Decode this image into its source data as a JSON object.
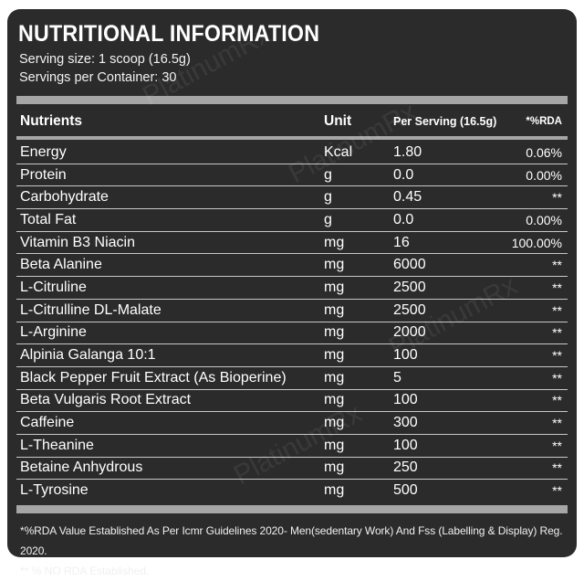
{
  "title": "NUTRITIONAL INFORMATION",
  "serving_size": "Serving size: 1 scoop (16.5g)",
  "servings_per_container": "Servings per Container: 30",
  "headers": {
    "nutrients": "Nutrients",
    "unit": "Unit",
    "per_serving": "Per Serving (16.5g)",
    "rda": "*%RDA"
  },
  "rows": [
    {
      "name": "Energy",
      "unit": "Kcal",
      "value": "1.80",
      "rda": "0.06%"
    },
    {
      "name": "Protein",
      "unit": "g",
      "value": "0.0",
      "rda": "0.00%"
    },
    {
      "name": "Carbohydrate",
      "unit": "g",
      "value": "0.45",
      "rda": "**"
    },
    {
      "name": "Total Fat",
      "unit": "g",
      "value": "0.0",
      "rda": "0.00%"
    },
    {
      "name": "Vitamin B3 Niacin",
      "unit": "mg",
      "value": "16",
      "rda": "100.00%"
    },
    {
      "name": "Beta Alanine",
      "unit": "mg",
      "value": "6000",
      "rda": "**"
    },
    {
      "name": "L-Citruline",
      "unit": "mg",
      "value": "2500",
      "rda": "**"
    },
    {
      "name": "L-Citrulline DL-Malate",
      "unit": "mg",
      "value": "2500",
      "rda": "**"
    },
    {
      "name": "L-Arginine",
      "unit": "mg",
      "value": "2000",
      "rda": "**"
    },
    {
      "name": "Alpinia Galanga 10:1",
      "unit": "mg",
      "value": "100",
      "rda": "**"
    },
    {
      "name": "Black Pepper Fruit Extract (As Bioperine)",
      "unit": "mg",
      "value": "5",
      "rda": "**"
    },
    {
      "name": "Beta Vulgaris Root Extract",
      "unit": "mg",
      "value": "100",
      "rda": "**"
    },
    {
      "name": "Caffeine",
      "unit": "mg",
      "value": "300",
      "rda": "**"
    },
    {
      "name": "L-Theanine",
      "unit": "mg",
      "value": "100",
      "rda": "**"
    },
    {
      "name": "Betaine Anhydrous",
      "unit": "mg",
      "value": "250",
      "rda": "**"
    },
    {
      "name": "L-Tyrosine",
      "unit": "mg",
      "value": "500",
      "rda": "**"
    }
  ],
  "footnotes": [
    "*%RDA Value Established As Per Icmr Guidelines 2020- Men(sedentary Work) And Fss (Labelling & Display) Reg. 2020.",
    "** % NO RDA Established."
  ],
  "watermark_text": "PlatinumRx"
}
